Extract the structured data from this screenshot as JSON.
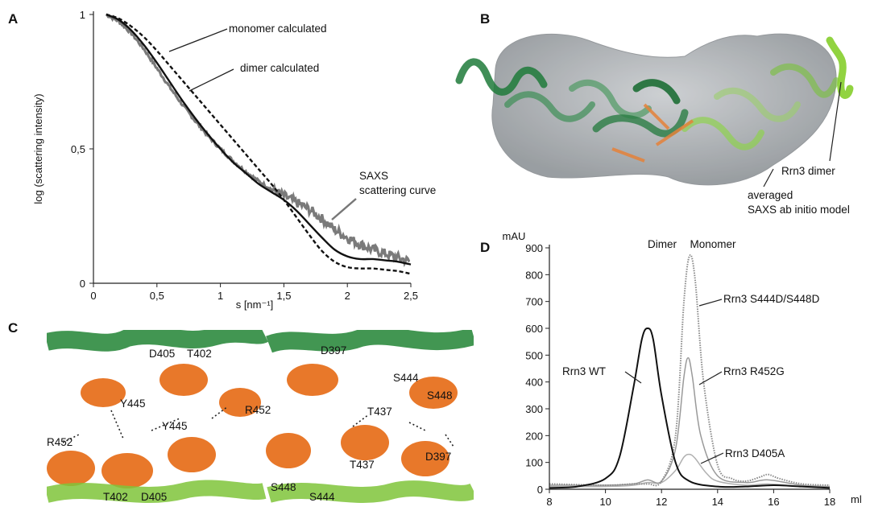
{
  "panels": {
    "a": "A",
    "b": "B",
    "c": "C",
    "d": "D"
  },
  "panel_b": {
    "label_dimer": "Rrn3 dimer",
    "label_model_line1": "averaged",
    "label_model_line2": "SAXS ab initio model",
    "colors": {
      "surface": "#aeb2b6",
      "chain_dark": "#1f7a3a",
      "chain_light": "#8fd14f",
      "orange": "#e5823a"
    }
  },
  "panel_c": {
    "left_labels": [
      "D405",
      "T402",
      "R452",
      "Y445",
      "Y445",
      "R452",
      "T402",
      "D405"
    ],
    "right_labels": [
      "D397",
      "S444",
      "S448",
      "T437",
      "T437",
      "D397",
      "S448",
      "S444"
    ],
    "colors": {
      "helix_orange": "#e8782a",
      "helix_green": "#2e8b3f",
      "helix_light": "#7fc43a"
    }
  },
  "chart_data": [
    {
      "type": "line",
      "panel": "A",
      "xlabel": "s [nm⁻¹]",
      "ylabel": "log (scattering intensity)",
      "xlim": [
        0,
        2.5
      ],
      "ylim": [
        0,
        1
      ],
      "x_ticks": [
        "0",
        "0,5",
        "1",
        "1,5",
        "2",
        "2,5"
      ],
      "y_ticks": [
        "0",
        "0,5",
        "1"
      ],
      "annotations": [
        "monomer calculated",
        "dimer calculated",
        "SAXS",
        "scattering curve"
      ],
      "series": [
        {
          "name": "monomer calculated",
          "style": "dashed",
          "color": "#111111",
          "x": [
            0.1,
            0.2,
            0.3,
            0.4,
            0.5,
            0.6,
            0.7,
            0.8,
            0.9,
            1.0,
            1.1,
            1.2,
            1.3,
            1.4,
            1.5,
            1.6,
            1.7,
            1.8,
            1.9,
            2.0,
            2.1,
            2.2,
            2.3,
            2.4,
            2.5
          ],
          "y": [
            1.0,
            0.985,
            0.955,
            0.915,
            0.865,
            0.81,
            0.755,
            0.7,
            0.645,
            0.59,
            0.535,
            0.48,
            0.425,
            0.37,
            0.31,
            0.245,
            0.18,
            0.12,
            0.08,
            0.06,
            0.055,
            0.055,
            0.05,
            0.045,
            0.035
          ]
        },
        {
          "name": "dimer calculated",
          "style": "solid",
          "color": "#111111",
          "x": [
            0.1,
            0.2,
            0.3,
            0.4,
            0.5,
            0.6,
            0.7,
            0.8,
            0.9,
            1.0,
            1.1,
            1.2,
            1.3,
            1.4,
            1.5,
            1.6,
            1.7,
            1.8,
            1.9,
            2.0,
            2.1,
            2.2,
            2.3,
            2.4,
            2.5
          ],
          "y": [
            1.0,
            0.98,
            0.94,
            0.885,
            0.82,
            0.75,
            0.68,
            0.615,
            0.555,
            0.5,
            0.45,
            0.41,
            0.37,
            0.34,
            0.31,
            0.27,
            0.22,
            0.17,
            0.125,
            0.1,
            0.09,
            0.09,
            0.085,
            0.08,
            0.07
          ]
        },
        {
          "name": "SAXS scattering curve",
          "style": "noisy",
          "color": "#7a7a7a",
          "x": [
            0.1,
            0.2,
            0.3,
            0.4,
            0.5,
            0.6,
            0.7,
            0.8,
            0.9,
            1.0,
            1.1,
            1.2,
            1.3,
            1.4,
            1.5,
            1.6,
            1.7,
            1.8,
            1.9,
            2.0,
            2.1,
            2.2,
            2.3,
            2.4,
            2.5
          ],
          "y": [
            1.0,
            0.975,
            0.93,
            0.87,
            0.8,
            0.73,
            0.665,
            0.605,
            0.55,
            0.5,
            0.455,
            0.415,
            0.38,
            0.35,
            0.325,
            0.3,
            0.275,
            0.24,
            0.2,
            0.17,
            0.145,
            0.125,
            0.11,
            0.095,
            0.08
          ]
        }
      ]
    },
    {
      "type": "line",
      "panel": "D",
      "xlabel": "ml",
      "ylabel": "mAU",
      "xlim": [
        8,
        18
      ],
      "ylim": [
        0,
        900
      ],
      "x_ticks": [
        "8",
        "10",
        "12",
        "14",
        "16",
        "18"
      ],
      "y_ticks": [
        "0",
        "100",
        "200",
        "300",
        "400",
        "500",
        "600",
        "700",
        "800",
        "900"
      ],
      "annotations": [
        "Dimer",
        "Monomer"
      ],
      "series": [
        {
          "name": "Rrn3 WT",
          "color": "#111111",
          "width": 2,
          "x": [
            8,
            9,
            10,
            10.5,
            11,
            11.3,
            11.5,
            11.7,
            12,
            12.5,
            13,
            14,
            15,
            16,
            17,
            18
          ],
          "y": [
            5,
            10,
            40,
            120,
            380,
            560,
            600,
            560,
            350,
            100,
            30,
            10,
            10,
            15,
            10,
            5
          ]
        },
        {
          "name": "Rrn3 S444D/S448D",
          "color": "#8a8a8a",
          "width": 2,
          "x": [
            8,
            10,
            11,
            11.5,
            12,
            12.5,
            12.8,
            13.0,
            13.2,
            13.5,
            14,
            14.5,
            15,
            15.5,
            15.8,
            16.2,
            17,
            18
          ],
          "y": [
            20,
            15,
            20,
            20,
            30,
            200,
            700,
            870,
            780,
            400,
            90,
            40,
            30,
            45,
            55,
            40,
            20,
            15
          ]
        },
        {
          "name": "Rrn3 R452G",
          "color": "#9a9a9a",
          "width": 1.5,
          "x": [
            8,
            10,
            11,
            11.5,
            12,
            12.5,
            12.8,
            12.95,
            13.1,
            13.4,
            14,
            15,
            15.8,
            17,
            18
          ],
          "y": [
            15,
            15,
            20,
            35,
            30,
            150,
            420,
            490,
            420,
            200,
            50,
            25,
            35,
            15,
            10
          ]
        },
        {
          "name": "Rrn3 D405A",
          "color": "#b0b0b0",
          "width": 1.5,
          "x": [
            8,
            10,
            11,
            11.5,
            12,
            12.5,
            12.8,
            13.0,
            13.2,
            13.6,
            14,
            15,
            15.8,
            17,
            18
          ],
          "y": [
            10,
            10,
            15,
            25,
            25,
            70,
            120,
            130,
            115,
            60,
            30,
            15,
            20,
            10,
            5
          ]
        }
      ]
    }
  ]
}
